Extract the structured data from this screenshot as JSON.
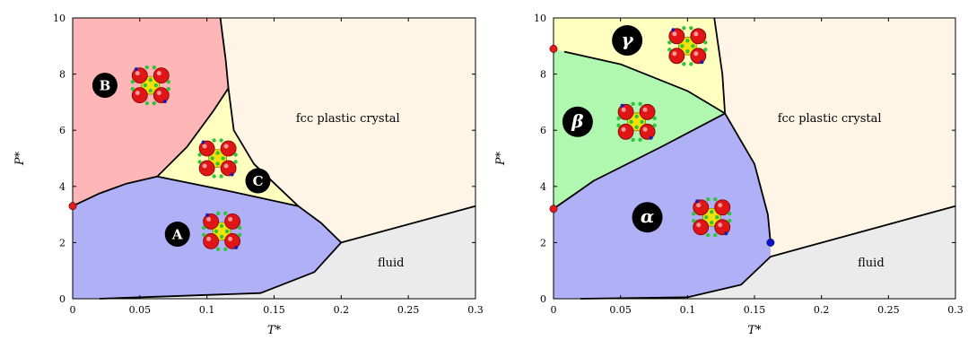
{
  "chart_data": [
    {
      "type": "area",
      "xlabel": "T*",
      "ylabel": "P*",
      "xlim": [
        0,
        0.3
      ],
      "ylim": [
        0,
        10
      ],
      "x_ticks": [
        "0",
        "0.05",
        "0.1",
        "0.15",
        "0.2",
        "0.25",
        "0.3"
      ],
      "y_ticks": [
        "0",
        "2",
        "4",
        "6",
        "8",
        "10"
      ],
      "regions": [
        {
          "name": "A",
          "fill": "#b0b0f7"
        },
        {
          "name": "B",
          "fill": "#ffb6b6"
        },
        {
          "name": "C",
          "fill": "#ffffbf"
        },
        {
          "name": "fcc plastic crystal",
          "fill": "#fef5e6"
        },
        {
          "name": "fluid",
          "fill": "#ebebeb"
        }
      ],
      "labels": {
        "fcc": "fcc plastic crystal",
        "fluid": "fluid",
        "A": "A",
        "B": "B",
        "C": "C"
      },
      "boundaries": {
        "A_B": [
          [
            0,
            3.3
          ],
          [
            0.02,
            3.75
          ],
          [
            0.04,
            4.1
          ],
          [
            0.063,
            4.35
          ]
        ],
        "B_C": [
          [
            0.063,
            4.35
          ],
          [
            0.085,
            5.4
          ],
          [
            0.105,
            6.7
          ],
          [
            0.116,
            7.5
          ]
        ],
        "B_fcc": [
          [
            0.11,
            10
          ],
          [
            0.114,
            8.5
          ],
          [
            0.116,
            7.5
          ]
        ],
        "C_fcc": [
          [
            0.116,
            7.5
          ],
          [
            0.12,
            6.0
          ],
          [
            0.135,
            4.8
          ],
          [
            0.168,
            3.3
          ]
        ],
        "A_C": [
          [
            0.063,
            4.35
          ],
          [
            0.12,
            3.8
          ],
          [
            0.168,
            3.3
          ]
        ],
        "A_fcc": [
          [
            0.168,
            3.3
          ],
          [
            0.185,
            2.7
          ],
          [
            0.2,
            2.0
          ]
        ],
        "fcc_fluid": [
          [
            0.2,
            2.0
          ],
          [
            0.3,
            3.3
          ]
        ],
        "A_fluid": [
          [
            0.2,
            2.0
          ],
          [
            0.18,
            0.95
          ],
          [
            0.14,
            0.2
          ],
          [
            0.02,
            0.0
          ]
        ]
      },
      "markers": [
        {
          "x": 0,
          "y": 3.3,
          "color": "#e31a1c"
        }
      ]
    },
    {
      "type": "area",
      "xlabel": "T*",
      "ylabel": "P*",
      "xlim": [
        0,
        0.3
      ],
      "ylim": [
        0,
        10
      ],
      "x_ticks": [
        "0",
        "0.05",
        "0.1",
        "0.15",
        "0.2",
        "0.25",
        "0.3"
      ],
      "y_ticks": [
        "0",
        "2",
        "4",
        "6",
        "8",
        "10"
      ],
      "regions": [
        {
          "name": "α",
          "fill": "#b0b0f7"
        },
        {
          "name": "β",
          "fill": "#b0f7b0"
        },
        {
          "name": "γ",
          "fill": "#ffffbf"
        },
        {
          "name": "fcc plastic crystal",
          "fill": "#fef5e6"
        },
        {
          "name": "fluid",
          "fill": "#ebebeb"
        }
      ],
      "labels": {
        "fcc": "fcc plastic crystal",
        "fluid": "fluid",
        "A": "α",
        "B": "β",
        "C": "γ"
      },
      "boundaries": {
        "beta_gamma": [
          [
            0.008,
            8.8
          ],
          [
            0.05,
            8.35
          ],
          [
            0.1,
            7.4
          ],
          [
            0.128,
            6.6
          ]
        ],
        "gamma_fcc": [
          [
            0.12,
            10
          ],
          [
            0.126,
            8.0
          ],
          [
            0.128,
            6.6
          ]
        ],
        "alpha_beta": [
          [
            0,
            3.2
          ],
          [
            0.03,
            4.2
          ],
          [
            0.08,
            5.4
          ],
          [
            0.128,
            6.6
          ]
        ],
        "alpha_fcc": [
          [
            0.128,
            6.6
          ],
          [
            0.15,
            4.8
          ],
          [
            0.16,
            3.0
          ],
          [
            0.162,
            2.0
          ]
        ],
        "fcc_fluid": [
          [
            0.162,
            1.5
          ],
          [
            0.3,
            3.3
          ]
        ],
        "alpha_fluid": [
          [
            0.162,
            1.5
          ],
          [
            0.14,
            0.5
          ],
          [
            0.1,
            0.05
          ],
          [
            0.02,
            0.0
          ]
        ]
      },
      "markers": [
        {
          "x": 0,
          "y": 8.9,
          "color": "#e31a1c"
        },
        {
          "x": 0,
          "y": 3.2,
          "color": "#e31a1c"
        },
        {
          "x": 0.162,
          "y": 2.0,
          "color": "#1010d0"
        }
      ]
    }
  ]
}
